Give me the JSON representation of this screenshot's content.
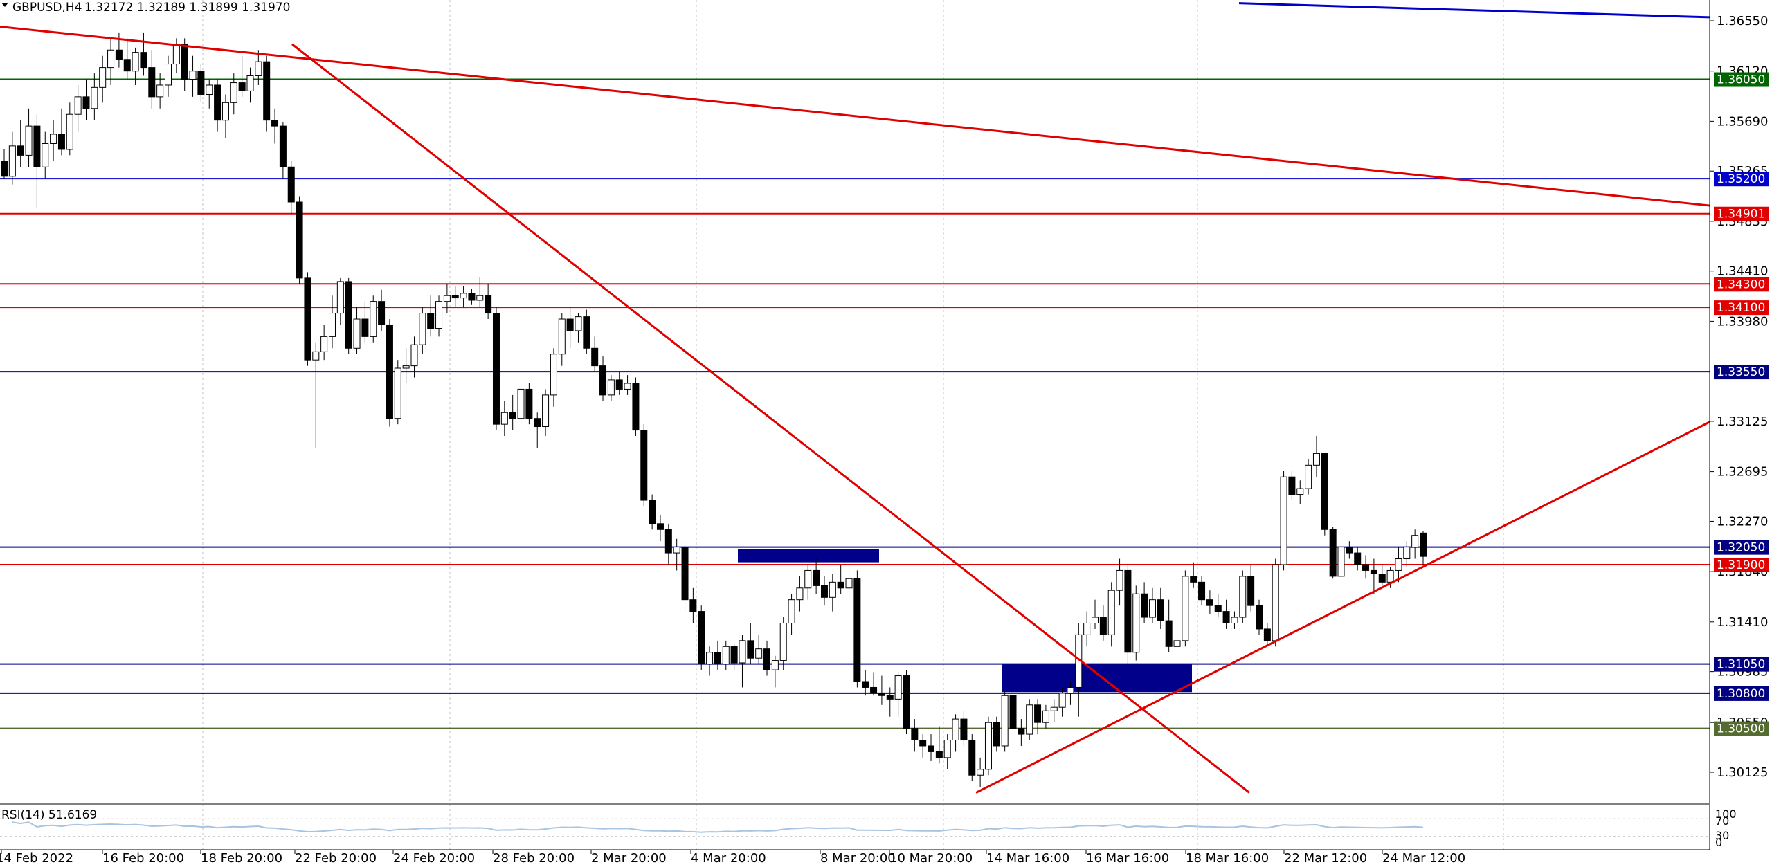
{
  "header": {
    "symbol_label": "GBPUSD,H4",
    "ohlc": "1.32172 1.32189 1.31899 1.31970",
    "menu_icon": "triangle-down-icon"
  },
  "rsi": {
    "label": "RSI(14) 51.6169",
    "levels": [
      "100",
      "70",
      "30",
      "0"
    ],
    "line_color": "#a8c4e0"
  },
  "colors": {
    "red": "#e00000",
    "blue": "#00008b",
    "navy_tag": "#000080",
    "green": "#006400",
    "olive": "#556b2f",
    "blue_line": "#0000cd",
    "grid": "#c0c0c0"
  },
  "chart_data": {
    "type": "candlestick",
    "symbol": "GBPUSD",
    "timeframe": "H4",
    "ylim": [
      1.299,
      1.367
    ],
    "y_ticks": [
      "1.36550",
      "1.36120",
      "1.35690",
      "1.35265",
      "1.34835",
      "1.34410",
      "1.33980",
      "1.33125",
      "1.32695",
      "1.32270",
      "1.31840",
      "1.31410",
      "1.30985",
      "1.30550",
      "1.30125"
    ],
    "x_tick_labels": [
      "14 Feb 2022",
      "16 Feb 20:00",
      "18 Feb 20:00",
      "22 Feb 20:00",
      "24 Feb 20:00",
      "28 Feb 20:00",
      "2 Mar 20:00",
      "4 Mar 20:00",
      "8 Mar 20:00",
      "10 Mar 20:00",
      "14 Mar 16:00",
      "16 Mar 16:00",
      "18 Mar 16:00",
      "22 Mar 12:00",
      "24 Mar 12:00"
    ],
    "horizontal_levels": [
      {
        "price": 1.3605,
        "label": "1.36050",
        "color": "#006400"
      },
      {
        "price": 1.352,
        "label": "1.35200",
        "color": "#0000cd"
      },
      {
        "price": 1.34901,
        "label": "1.34901",
        "color": "#e00000"
      },
      {
        "price": 1.343,
        "label": "1.34300",
        "color": "#e00000"
      },
      {
        "price": 1.341,
        "label": "1.34100",
        "color": "#e00000"
      },
      {
        "price": 1.3355,
        "label": "1.33550",
        "color": "#00008b"
      },
      {
        "price": 1.3205,
        "label": "1.32050",
        "color": "#00008b"
      },
      {
        "price": 1.319,
        "label": "1.31900",
        "color": "#e00000"
      },
      {
        "price": 1.3105,
        "label": "1.31050",
        "color": "#00008b"
      },
      {
        "price": 1.308,
        "label": "1.30800",
        "color": "#00008b"
      },
      {
        "price": 1.305,
        "label": "1.30500",
        "color": "#556b2f"
      }
    ],
    "trendlines": [
      {
        "from": [
          0,
          1.365
        ],
        "to": [
          2470,
          1.3497
        ],
        "color": "#e00000"
      },
      {
        "from": [
          422,
          1.3635
        ],
        "to": [
          1805,
          1.2995
        ],
        "color": "#e00000"
      },
      {
        "from": [
          1410,
          1.2995
        ],
        "to": [
          2470,
          1.3312
        ],
        "color": "#e00000"
      },
      {
        "from": [
          1790,
          1.367
        ],
        "to": [
          2470,
          1.3658
        ],
        "color": "#0000cd"
      }
    ],
    "zones": [
      {
        "x0": 1066,
        "x1": 1270,
        "top": 1.32035,
        "bottom": 1.3192,
        "color": "#00008b"
      },
      {
        "x0": 1448,
        "x1": 1722,
        "top": 1.3105,
        "bottom": 1.3081,
        "color": "#00008b"
      }
    ],
    "candles": [
      [
        1.3535,
        1.3545,
        1.352,
        1.3522
      ],
      [
        1.3522,
        1.356,
        1.3515,
        1.3548
      ],
      [
        1.3548,
        1.357,
        1.353,
        1.354
      ],
      [
        1.354,
        1.358,
        1.353,
        1.3565
      ],
      [
        1.3565,
        1.3575,
        1.3495,
        1.353
      ],
      [
        1.353,
        1.356,
        1.352,
        1.355
      ],
      [
        1.355,
        1.357,
        1.3535,
        1.3558
      ],
      [
        1.3558,
        1.358,
        1.354,
        1.3545
      ],
      [
        1.3545,
        1.3585,
        1.354,
        1.3575
      ],
      [
        1.3575,
        1.36,
        1.356,
        1.359
      ],
      [
        1.359,
        1.3605,
        1.357,
        1.358
      ],
      [
        1.358,
        1.361,
        1.357,
        1.3598
      ],
      [
        1.3598,
        1.3625,
        1.3585,
        1.3615
      ],
      [
        1.3615,
        1.364,
        1.36,
        1.363
      ],
      [
        1.363,
        1.3645,
        1.3615,
        1.3622
      ],
      [
        1.3622,
        1.364,
        1.3605,
        1.3612
      ],
      [
        1.3612,
        1.3632,
        1.36,
        1.3628
      ],
      [
        1.3628,
        1.3645,
        1.3608,
        1.3615
      ],
      [
        1.3615,
        1.363,
        1.358,
        1.359
      ],
      [
        1.359,
        1.361,
        1.358,
        1.36
      ],
      [
        1.36,
        1.3625,
        1.359,
        1.3618
      ],
      [
        1.3618,
        1.364,
        1.361,
        1.3635
      ],
      [
        1.3635,
        1.364,
        1.3595,
        1.3605
      ],
      [
        1.3605,
        1.3625,
        1.359,
        1.3612
      ],
      [
        1.3612,
        1.3618,
        1.3585,
        1.3592
      ],
      [
        1.3592,
        1.3605,
        1.358,
        1.36
      ],
      [
        1.36,
        1.3605,
        1.356,
        1.357
      ],
      [
        1.357,
        1.3592,
        1.3555,
        1.3585
      ],
      [
        1.3585,
        1.361,
        1.3575,
        1.3602
      ],
      [
        1.3602,
        1.3625,
        1.359,
        1.3595
      ],
      [
        1.3595,
        1.3615,
        1.3585,
        1.3608
      ],
      [
        1.3608,
        1.363,
        1.36,
        1.362
      ],
      [
        1.362,
        1.3625,
        1.356,
        1.357
      ],
      [
        1.357,
        1.358,
        1.355,
        1.3565
      ],
      [
        1.3565,
        1.3568,
        1.352,
        1.353
      ],
      [
        1.353,
        1.3535,
        1.349,
        1.35
      ],
      [
        1.35,
        1.3505,
        1.343,
        1.3435
      ],
      [
        1.3435,
        1.344,
        1.336,
        1.3365
      ],
      [
        1.3365,
        1.338,
        1.329,
        1.3372
      ],
      [
        1.3372,
        1.3395,
        1.3365,
        1.3385
      ],
      [
        1.3385,
        1.342,
        1.3375,
        1.3405
      ],
      [
        1.3405,
        1.3435,
        1.3395,
        1.3432
      ],
      [
        1.3432,
        1.3435,
        1.337,
        1.3375
      ],
      [
        1.3375,
        1.341,
        1.337,
        1.34
      ],
      [
        1.34,
        1.3415,
        1.338,
        1.3385
      ],
      [
        1.3385,
        1.342,
        1.338,
        1.3415
      ],
      [
        1.3415,
        1.3425,
        1.339,
        1.3395
      ],
      [
        1.3395,
        1.34,
        1.3308,
        1.3315
      ],
      [
        1.3315,
        1.3365,
        1.331,
        1.3358
      ],
      [
        1.3358,
        1.3375,
        1.3345,
        1.336
      ],
      [
        1.336,
        1.3385,
        1.335,
        1.3378
      ],
      [
        1.3378,
        1.341,
        1.337,
        1.3405
      ],
      [
        1.3405,
        1.342,
        1.3385,
        1.3392
      ],
      [
        1.3392,
        1.342,
        1.3385,
        1.3415
      ],
      [
        1.3415,
        1.343,
        1.3405,
        1.342
      ],
      [
        1.342,
        1.3428,
        1.341,
        1.3418
      ],
      [
        1.3418,
        1.3428,
        1.341,
        1.3422
      ],
      [
        1.3422,
        1.3426,
        1.3412,
        1.3416
      ],
      [
        1.3416,
        1.3436,
        1.341,
        1.342
      ],
      [
        1.342,
        1.343,
        1.34,
        1.3405
      ],
      [
        1.3405,
        1.341,
        1.3305,
        1.331
      ],
      [
        1.331,
        1.333,
        1.33,
        1.332
      ],
      [
        1.332,
        1.3335,
        1.3305,
        1.3315
      ],
      [
        1.3315,
        1.3345,
        1.331,
        1.334
      ],
      [
        1.334,
        1.3345,
        1.331,
        1.3315
      ],
      [
        1.3315,
        1.332,
        1.329,
        1.3308
      ],
      [
        1.3308,
        1.334,
        1.33,
        1.3335
      ],
      [
        1.3335,
        1.3375,
        1.3325,
        1.337
      ],
      [
        1.337,
        1.3405,
        1.336,
        1.34
      ],
      [
        1.34,
        1.341,
        1.3375,
        1.339
      ],
      [
        1.339,
        1.3405,
        1.338,
        1.3402
      ],
      [
        1.3402,
        1.3408,
        1.337,
        1.3375
      ],
      [
        1.3375,
        1.3385,
        1.3355,
        1.336
      ],
      [
        1.336,
        1.3368,
        1.333,
        1.3335
      ],
      [
        1.3335,
        1.3352,
        1.333,
        1.3348
      ],
      [
        1.3348,
        1.3355,
        1.3335,
        1.334
      ],
      [
        1.334,
        1.3352,
        1.3335,
        1.3345
      ],
      [
        1.3345,
        1.335,
        1.33,
        1.3305
      ],
      [
        1.3305,
        1.331,
        1.324,
        1.3245
      ],
      [
        1.3245,
        1.325,
        1.322,
        1.3225
      ],
      [
        1.3225,
        1.3232,
        1.321,
        1.322
      ],
      [
        1.322,
        1.3225,
        1.319,
        1.32
      ],
      [
        1.32,
        1.3212,
        1.3185,
        1.3205
      ],
      [
        1.3205,
        1.321,
        1.315,
        1.316
      ],
      [
        1.316,
        1.317,
        1.314,
        1.315
      ],
      [
        1.315,
        1.3155,
        1.31,
        1.3105
      ],
      [
        1.3105,
        1.312,
        1.3095,
        1.3115
      ],
      [
        1.3115,
        1.3125,
        1.31,
        1.3105
      ],
      [
        1.3105,
        1.3125,
        1.31,
        1.312
      ],
      [
        1.312,
        1.3122,
        1.31,
        1.3106
      ],
      [
        1.3106,
        1.313,
        1.3085,
        1.3125
      ],
      [
        1.3125,
        1.314,
        1.3105,
        1.311
      ],
      [
        1.311,
        1.313,
        1.3105,
        1.3118
      ],
      [
        1.3118,
        1.3125,
        1.3095,
        1.31
      ],
      [
        1.31,
        1.3112,
        1.3085,
        1.3108
      ],
      [
        1.3108,
        1.3145,
        1.31,
        1.314
      ],
      [
        1.314,
        1.3165,
        1.313,
        1.316
      ],
      [
        1.316,
        1.318,
        1.315,
        1.317
      ],
      [
        1.317,
        1.319,
        1.316,
        1.3185
      ],
      [
        1.3185,
        1.3195,
        1.3165,
        1.3172
      ],
      [
        1.3172,
        1.318,
        1.3155,
        1.3162
      ],
      [
        1.3162,
        1.3182,
        1.315,
        1.3175
      ],
      [
        1.3175,
        1.319,
        1.3165,
        1.317
      ],
      [
        1.317,
        1.319,
        1.316,
        1.3178
      ],
      [
        1.3178,
        1.3185,
        1.3085,
        1.309
      ],
      [
        1.309,
        1.31,
        1.3078,
        1.3085
      ],
      [
        1.3085,
        1.3098,
        1.3078,
        1.308
      ],
      [
        1.308,
        1.3095,
        1.307,
        1.3078
      ],
      [
        1.3078,
        1.3085,
        1.306,
        1.3075
      ],
      [
        1.3075,
        1.3098,
        1.306,
        1.3095
      ],
      [
        1.3095,
        1.31,
        1.3045,
        1.305
      ],
      [
        1.305,
        1.3058,
        1.303,
        1.304
      ],
      [
        1.304,
        1.3045,
        1.3025,
        1.3035
      ],
      [
        1.3035,
        1.3045,
        1.3022,
        1.303
      ],
      [
        1.303,
        1.3052,
        1.302,
        1.3025
      ],
      [
        1.3025,
        1.3045,
        1.3015,
        1.304
      ],
      [
        1.304,
        1.3062,
        1.303,
        1.3058
      ],
      [
        1.3058,
        1.3065,
        1.3035,
        1.304
      ],
      [
        1.304,
        1.3045,
        1.3005,
        1.301
      ],
      [
        1.301,
        1.3025,
        1.3,
        1.3015
      ],
      [
        1.3015,
        1.306,
        1.301,
        1.3055
      ],
      [
        1.3055,
        1.306,
        1.303,
        1.3035
      ],
      [
        1.3035,
        1.3082,
        1.303,
        1.3078
      ],
      [
        1.3078,
        1.3085,
        1.3045,
        1.305
      ],
      [
        1.305,
        1.3058,
        1.3035,
        1.3045
      ],
      [
        1.3045,
        1.3075,
        1.304,
        1.307
      ],
      [
        1.307,
        1.3075,
        1.3045,
        1.3055
      ],
      [
        1.3055,
        1.307,
        1.305,
        1.3065
      ],
      [
        1.3065,
        1.3075,
        1.3055,
        1.3068
      ],
      [
        1.3068,
        1.3085,
        1.306,
        1.308
      ],
      [
        1.308,
        1.309,
        1.307,
        1.3085
      ],
      [
        1.3085,
        1.314,
        1.306,
        1.313
      ],
      [
        1.313,
        1.315,
        1.312,
        1.314
      ],
      [
        1.314,
        1.316,
        1.3135,
        1.3145
      ],
      [
        1.3145,
        1.3155,
        1.3125,
        1.313
      ],
      [
        1.313,
        1.3175,
        1.312,
        1.3168
      ],
      [
        1.3168,
        1.3195,
        1.3155,
        1.3185
      ],
      [
        1.3185,
        1.319,
        1.31,
        1.3115
      ],
      [
        1.3115,
        1.3172,
        1.3108,
        1.3165
      ],
      [
        1.3165,
        1.3175,
        1.314,
        1.3145
      ],
      [
        1.3145,
        1.317,
        1.314,
        1.316
      ],
      [
        1.316,
        1.317,
        1.3135,
        1.3142
      ],
      [
        1.3142,
        1.316,
        1.3115,
        1.312
      ],
      [
        1.312,
        1.313,
        1.311,
        1.3125
      ],
      [
        1.3125,
        1.3185,
        1.312,
        1.318
      ],
      [
        1.318,
        1.3192,
        1.317,
        1.3175
      ],
      [
        1.3175,
        1.318,
        1.3155,
        1.316
      ],
      [
        1.316,
        1.3168,
        1.3148,
        1.3155
      ],
      [
        1.3155,
        1.3165,
        1.3145,
        1.315
      ],
      [
        1.315,
        1.316,
        1.3135,
        1.314
      ],
      [
        1.314,
        1.315,
        1.3135,
        1.3145
      ],
      [
        1.3145,
        1.3185,
        1.314,
        1.318
      ],
      [
        1.318,
        1.319,
        1.315,
        1.3155
      ],
      [
        1.3155,
        1.316,
        1.313,
        1.3135
      ],
      [
        1.3135,
        1.314,
        1.312,
        1.3125
      ],
      [
        1.3125,
        1.3195,
        1.312,
        1.319
      ],
      [
        1.319,
        1.327,
        1.3185,
        1.3265
      ],
      [
        1.3265,
        1.327,
        1.3245,
        1.325
      ],
      [
        1.325,
        1.3262,
        1.3242,
        1.3255
      ],
      [
        1.3255,
        1.328,
        1.325,
        1.3275
      ],
      [
        1.3275,
        1.33,
        1.3265,
        1.3285
      ],
      [
        1.3285,
        1.3285,
        1.3215,
        1.322
      ],
      [
        1.322,
        1.3222,
        1.3178,
        1.318
      ],
      [
        1.318,
        1.321,
        1.3178,
        1.3205
      ],
      [
        1.3205,
        1.321,
        1.3195,
        1.32
      ],
      [
        1.32,
        1.3205,
        1.3185,
        1.319
      ],
      [
        1.319,
        1.3198,
        1.3178,
        1.3185
      ],
      [
        1.3185,
        1.3195,
        1.3165,
        1.3182
      ],
      [
        1.3182,
        1.319,
        1.3172,
        1.3175
      ],
      [
        1.3175,
        1.3188,
        1.317,
        1.3185
      ],
      [
        1.3185,
        1.3205,
        1.3175,
        1.3195
      ],
      [
        1.3195,
        1.321,
        1.3188,
        1.3205
      ],
      [
        1.3205,
        1.322,
        1.3195,
        1.3215
      ],
      [
        1.3217,
        1.3219,
        1.319,
        1.3197
      ]
    ]
  }
}
